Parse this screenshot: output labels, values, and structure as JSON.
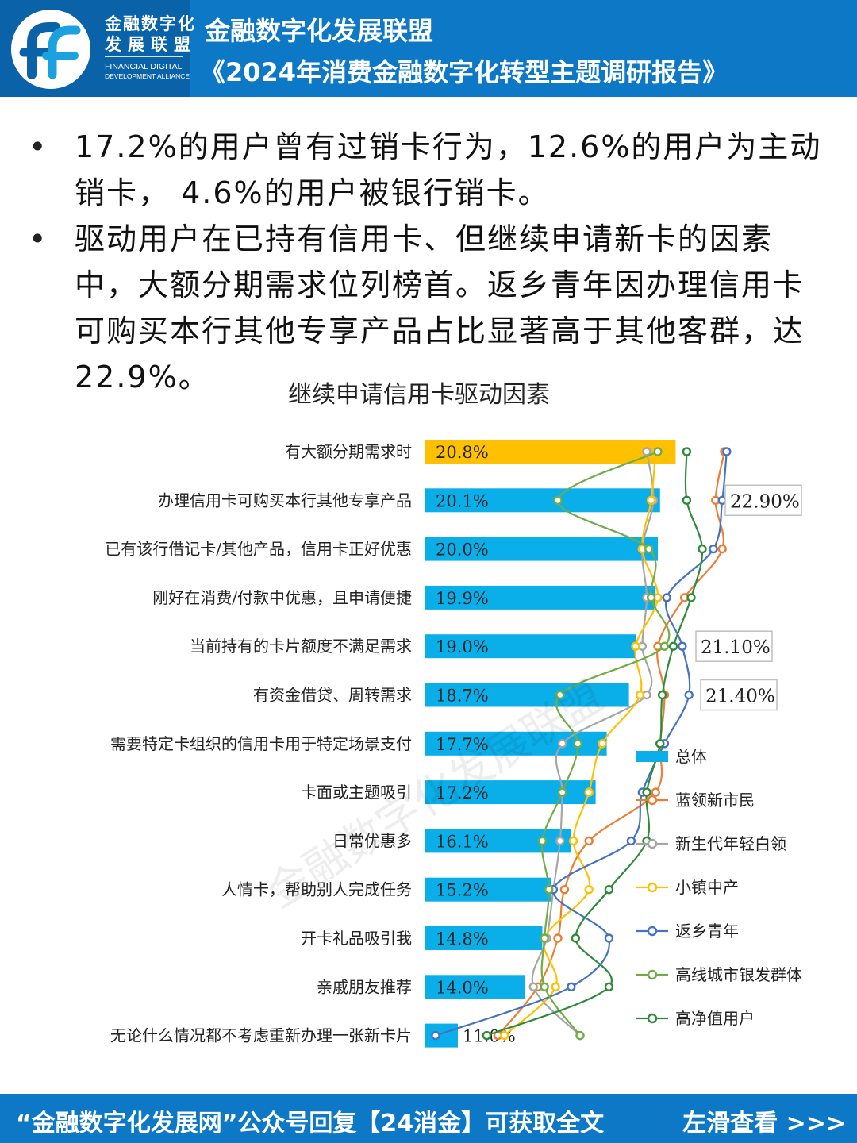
{
  "header": {
    "logo_cn_line1": "金融数字化",
    "logo_cn_line2": "发展联盟",
    "logo_en_line1": "FINANCIAL DIGITAL",
    "logo_en_line2": "DEVELOPMENT ALLIANCE",
    "org_name": "金融数字化发展联盟",
    "report_title": "《2024年消费金融数字化转型主题调研报告》"
  },
  "bullets": [
    "17.2%的用户曾有过销卡行为，12.6%的用户为主动销卡， 4.6%的用户被银行销卡。",
    "驱动用户在已持有信用卡、但继续申请新卡的因素中，大额分期需求位列榜首。返乡青年因办理信用卡可购买本行其他专享产品占比显著高于其他客群，达22.9%。"
  ],
  "watermark": "金融数字化发展联盟",
  "footer": {
    "text": "“金融数字化发展网”公众号回复【24消金】可获取全文",
    "swipe": "左滑查看 >>>"
  },
  "colors": {
    "header_bg": "#0d79c6",
    "bar": "#0aaee8",
    "bar_highlight": "#ffc000"
  },
  "chart_data": {
    "type": "bar",
    "orientation": "horizontal",
    "title": "继续申请信用卡驱动因素",
    "categories": [
      "有大额分期需求时",
      "办理信用卡可购买本行其他专享产品",
      "已有该行借记卡/其他产品，信用卡正好优惠",
      "刚好在消费/付款中优惠，且申请便捷",
      "当前持有的卡片额度不满足需求",
      "有资金借贷、周转需求",
      "需要特定卡组织的信用卡用于特定场景支付",
      "卡面或主题吸引",
      "日常优惠多",
      "人情卡，帮助别人完成任务",
      "开卡礼品吸引我",
      "亲戚朋友推荐",
      "无论什么情况都不考虑重新办理一张新卡片"
    ],
    "bar_labels": [
      "20.8%",
      "20.1%",
      "20.0%",
      "19.9%",
      "19.0%",
      "18.7%",
      "17.7%",
      "17.2%",
      "16.1%",
      "15.2%",
      "14.8%",
      "14.0%",
      "11.0%"
    ],
    "series": [
      {
        "name": "总体",
        "kind": "bar",
        "color": "#0aaee8",
        "values": [
          20.8,
          20.1,
          20.0,
          19.9,
          19.0,
          18.7,
          17.7,
          17.2,
          16.1,
          15.2,
          14.8,
          14.0,
          11.0
        ]
      },
      {
        "name": "蓝领新市民",
        "kind": "line",
        "color": "#ed7d31",
        "values": [
          23.0,
          22.6,
          22.9,
          21.2,
          20.0,
          20.3,
          20.1,
          19.9,
          16.9,
          15.8,
          15.5,
          14.6,
          12.8
        ]
      },
      {
        "name": "新生代年轻白领",
        "kind": "line",
        "color": "#a5a5a5",
        "values": [
          19.5,
          19.8,
          19.3,
          19.5,
          19.3,
          19.5,
          15.7,
          15.7,
          15.6,
          15.3,
          15.0,
          14.4,
          16.5
        ]
      },
      {
        "name": "小镇中产",
        "kind": "line",
        "color": "#ffc000",
        "values": [
          19.9,
          19.7,
          19.3,
          20.0,
          19.0,
          19.2,
          17.5,
          16.9,
          16.2,
          16.9,
          14.9,
          15.4,
          13.1
        ]
      },
      {
        "name": "返乡青年",
        "kind": "line",
        "color": "#4472c4",
        "values": [
          23.1,
          22.9,
          22.5,
          20.4,
          21.1,
          21.4,
          20.3,
          19.3,
          18.8,
          15.3,
          17.8,
          16.1,
          10.0
        ]
      },
      {
        "name": "高线城市银发群体",
        "kind": "line",
        "color": "#70ad47",
        "values": [
          20.0,
          15.5,
          19.6,
          19.7,
          20.3,
          15.6,
          16.4,
          15.7,
          14.8,
          15.1,
          14.9,
          14.9,
          16.5
        ]
      },
      {
        "name": "高净值用户",
        "kind": "line",
        "color": "#2e8b3a",
        "values": [
          21.3,
          21.3,
          22.0,
          21.5,
          20.7,
          20.2,
          20.1,
          19.5,
          19.5,
          17.8,
          16.3,
          17.8,
          12.3
        ]
      }
    ],
    "callouts": [
      "22.90%",
      "21.10%",
      "21.40%"
    ],
    "legend_position": "right",
    "xlim": [
      9.5,
      24.0
    ]
  }
}
